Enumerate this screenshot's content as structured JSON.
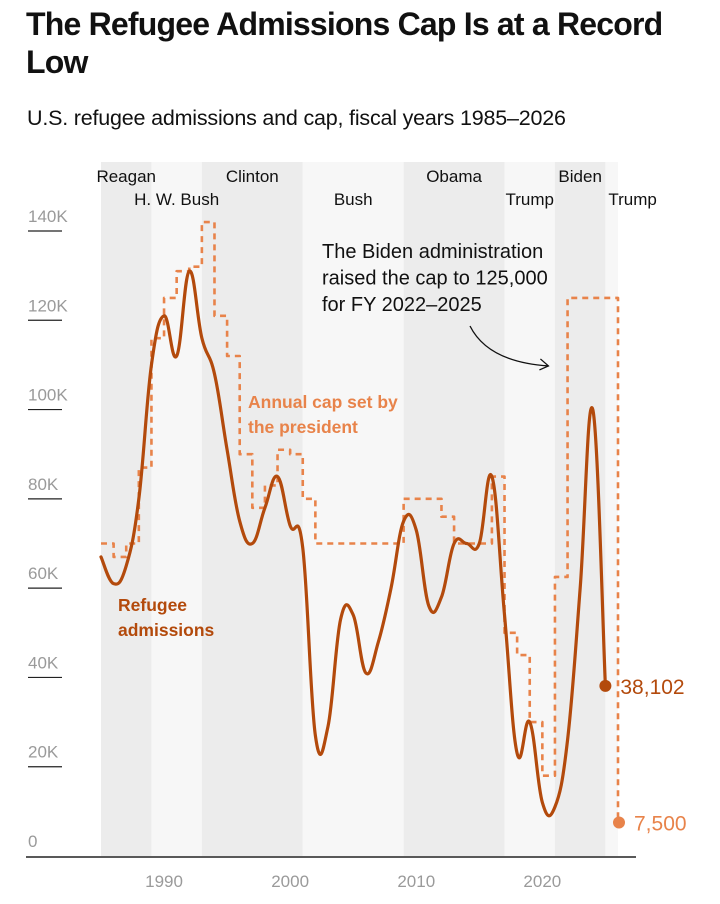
{
  "title": "The Refugee Admissions Cap Is at a Record Low",
  "subtitle": "U.S. refugee admissions and cap, fiscal years 1985–2026",
  "colors": {
    "admissions": "#b34a0c",
    "cap": "#e8834a",
    "band_dark": "#ececec",
    "band_light": "#f7f7f7",
    "axis": "#222222",
    "tick_text": "#9a9a9a"
  },
  "chart_data": {
    "type": "line",
    "xlim": [
      1985,
      2026
    ],
    "ylim": [
      0,
      140000
    ],
    "y_ticks": [
      0,
      20000,
      40000,
      60000,
      80000,
      100000,
      120000,
      140000
    ],
    "y_tick_labels": [
      "0",
      "20K",
      "40K",
      "60K",
      "80K",
      "100K",
      "120K",
      "140K"
    ],
    "x_ticks": [
      1990,
      2000,
      2010,
      2020
    ],
    "x_tick_labels": [
      "1990",
      "2000",
      "2010",
      "2020"
    ],
    "presidencies": [
      {
        "name": "Reagan",
        "start": 1985,
        "end": 1989,
        "shade": "dark",
        "row": "top"
      },
      {
        "name": "H. W. Bush",
        "start": 1989,
        "end": 1993,
        "shade": "light",
        "row": "bottom"
      },
      {
        "name": "Clinton",
        "start": 1993,
        "end": 2001,
        "shade": "dark",
        "row": "top"
      },
      {
        "name": "Bush",
        "start": 2001,
        "end": 2009,
        "shade": "light",
        "row": "bottom"
      },
      {
        "name": "Obama",
        "start": 2009,
        "end": 2017,
        "shade": "dark",
        "row": "top"
      },
      {
        "name": "Trump",
        "start": 2017,
        "end": 2021,
        "shade": "light",
        "row": "bottom"
      },
      {
        "name": "Biden",
        "start": 2021,
        "end": 2025,
        "shade": "dark",
        "row": "top"
      },
      {
        "name": "Trump",
        "start": 2025,
        "end": 2026,
        "shade": "light",
        "row": "bottom"
      }
    ],
    "series": [
      {
        "name": "Refugee admissions",
        "label": "Refugee admissions",
        "label_lines": [
          "Refugee",
          "admissions"
        ],
        "style": "solid",
        "x": [
          1985,
          1986,
          1987,
          1988,
          1989,
          1990,
          1991,
          1992,
          1993,
          1994,
          1995,
          1996,
          1997,
          1998,
          1999,
          2000,
          2001,
          2002,
          2003,
          2004,
          2005,
          2006,
          2007,
          2008,
          2009,
          2010,
          2011,
          2012,
          2013,
          2014,
          2015,
          2016,
          2017,
          2018,
          2019,
          2020,
          2021,
          2022,
          2023,
          2024,
          2025
        ],
        "values": [
          67000,
          61000,
          65000,
          80000,
          110000,
          121000,
          112000,
          131000,
          116000,
          108000,
          91000,
          75000,
          70000,
          78000,
          85000,
          74000,
          69000,
          27000,
          29000,
          53000,
          54000,
          41000,
          48000,
          60000,
          75000,
          73000,
          56000,
          58000,
          70000,
          70000,
          70000,
          85000,
          54000,
          23000,
          30000,
          12000,
          11000,
          26000,
          60000,
          100000,
          38102
        ]
      },
      {
        "name": "Annual cap set by the president",
        "label": "Annual cap set by the president",
        "label_lines": [
          "Annual cap set by",
          "the president"
        ],
        "style": "dashed-step",
        "x": [
          1985,
          1986,
          1987,
          1988,
          1989,
          1990,
          1991,
          1992,
          1993,
          1994,
          1995,
          1996,
          1997,
          1998,
          1999,
          2000,
          2001,
          2002,
          2003,
          2004,
          2005,
          2006,
          2007,
          2008,
          2009,
          2010,
          2011,
          2012,
          2013,
          2014,
          2015,
          2016,
          2017,
          2018,
          2019,
          2020,
          2021,
          2022,
          2023,
          2024,
          2025,
          2026
        ],
        "values": [
          70000,
          67000,
          70000,
          87000,
          116000,
          125000,
          131000,
          132000,
          142000,
          121000,
          112000,
          90000,
          78000,
          83000,
          91000,
          90000,
          80000,
          70000,
          70000,
          70000,
          70000,
          70000,
          70000,
          70000,
          80000,
          80000,
          80000,
          76000,
          70000,
          70000,
          70000,
          85000,
          50000,
          45000,
          30000,
          18000,
          62500,
          125000,
          125000,
          125000,
          125000,
          7500
        ]
      }
    ],
    "end_labels": {
      "admissions": "38,102",
      "cap": "7,500"
    },
    "annotation": {
      "lines": [
        "The Biden administration",
        "raised the cap to 125,000",
        "for FY 2022–2025"
      ],
      "arrow_target_year": 2020.8,
      "arrow_target_value": 110000
    }
  }
}
